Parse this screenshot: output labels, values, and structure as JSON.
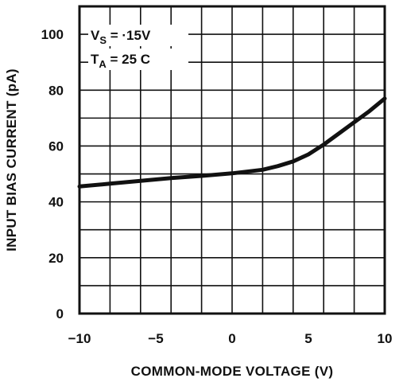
{
  "chart_data": {
    "type": "line",
    "title": "",
    "xlabel": "COMMON-MODE VOLTAGE (V)",
    "ylabel": "INPUT BIAS CURRENT (pA)",
    "xlim": [
      -10,
      10
    ],
    "ylim": [
      0,
      110
    ],
    "x_ticks": [
      -10,
      -5,
      0,
      5,
      10
    ],
    "x_tick_labels": [
      "−10",
      "−5",
      "0",
      "5",
      "10"
    ],
    "y_ticks": [
      0,
      20,
      40,
      60,
      80,
      100
    ],
    "y_tick_labels": [
      "0",
      "20",
      "40",
      "60",
      "80",
      "100"
    ],
    "grid": true,
    "grid_x_step": 2,
    "grid_y_step": 10,
    "annotations": [
      {
        "main": "V",
        "sub": "S",
        "rest": " = ·15V"
      },
      {
        "main": "T",
        "sub": "A",
        "rest": " = 25 C"
      }
    ],
    "series": [
      {
        "x": [
          -10,
          -8,
          -6,
          -4,
          -2,
          0,
          2,
          3,
          4,
          5,
          6,
          7,
          8,
          9,
          10
        ],
        "y": [
          45.5,
          46.5,
          47.5,
          48.5,
          49.3,
          50.2,
          51.5,
          52.8,
          54.5,
          57,
          60.5,
          64.5,
          68.5,
          72.5,
          77
        ]
      }
    ]
  }
}
